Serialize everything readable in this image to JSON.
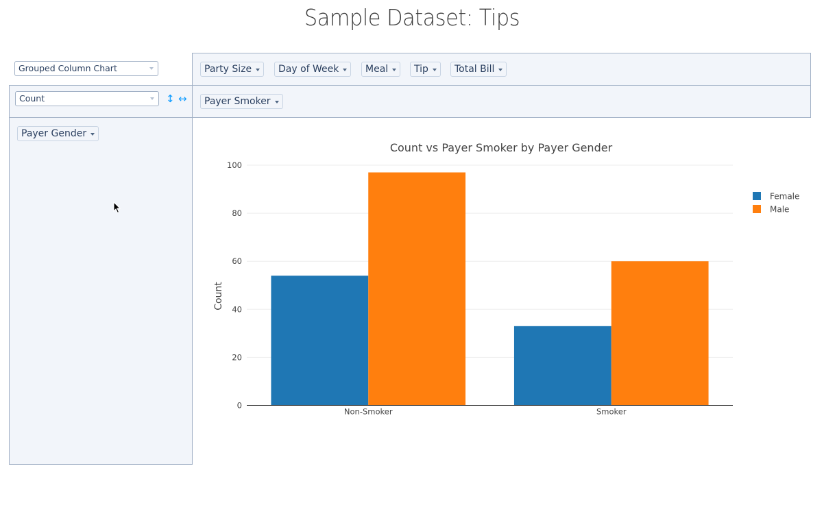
{
  "page": {
    "title": "Sample Dataset: Tips"
  },
  "controls": {
    "renderer": {
      "value": "Grouped Column Chart"
    },
    "aggregator": {
      "value": "Count"
    },
    "row_order_icon": "vertical-arrows-icon",
    "col_order_icon": "horizontal-arrows-icon",
    "row_order_glyph": "↕",
    "col_order_glyph": "↔"
  },
  "unused_attributes": [
    {
      "label": "Party Size"
    },
    {
      "label": "Day of Week"
    },
    {
      "label": "Meal"
    },
    {
      "label": "Tip"
    },
    {
      "label": "Total Bill"
    }
  ],
  "col_attributes": [
    {
      "label": "Payer Smoker"
    }
  ],
  "row_attributes": [
    {
      "label": "Payer Gender"
    }
  ],
  "chart_data": {
    "type": "bar",
    "title": "Count vs Payer Smoker by Payer Gender",
    "xlabel": "",
    "ylabel": "Count",
    "categories": [
      "Non-Smoker",
      "Smoker"
    ],
    "series": [
      {
        "name": "Female",
        "values": [
          54,
          33
        ],
        "color": "#1f77b4"
      },
      {
        "name": "Male",
        "values": [
          97,
          60
        ],
        "color": "#ff7f0e"
      }
    ],
    "ylim": [
      0,
      102
    ],
    "yticks": [
      0,
      20,
      40,
      60,
      80,
      100
    ],
    "grid": true,
    "legend": "top-right"
  }
}
